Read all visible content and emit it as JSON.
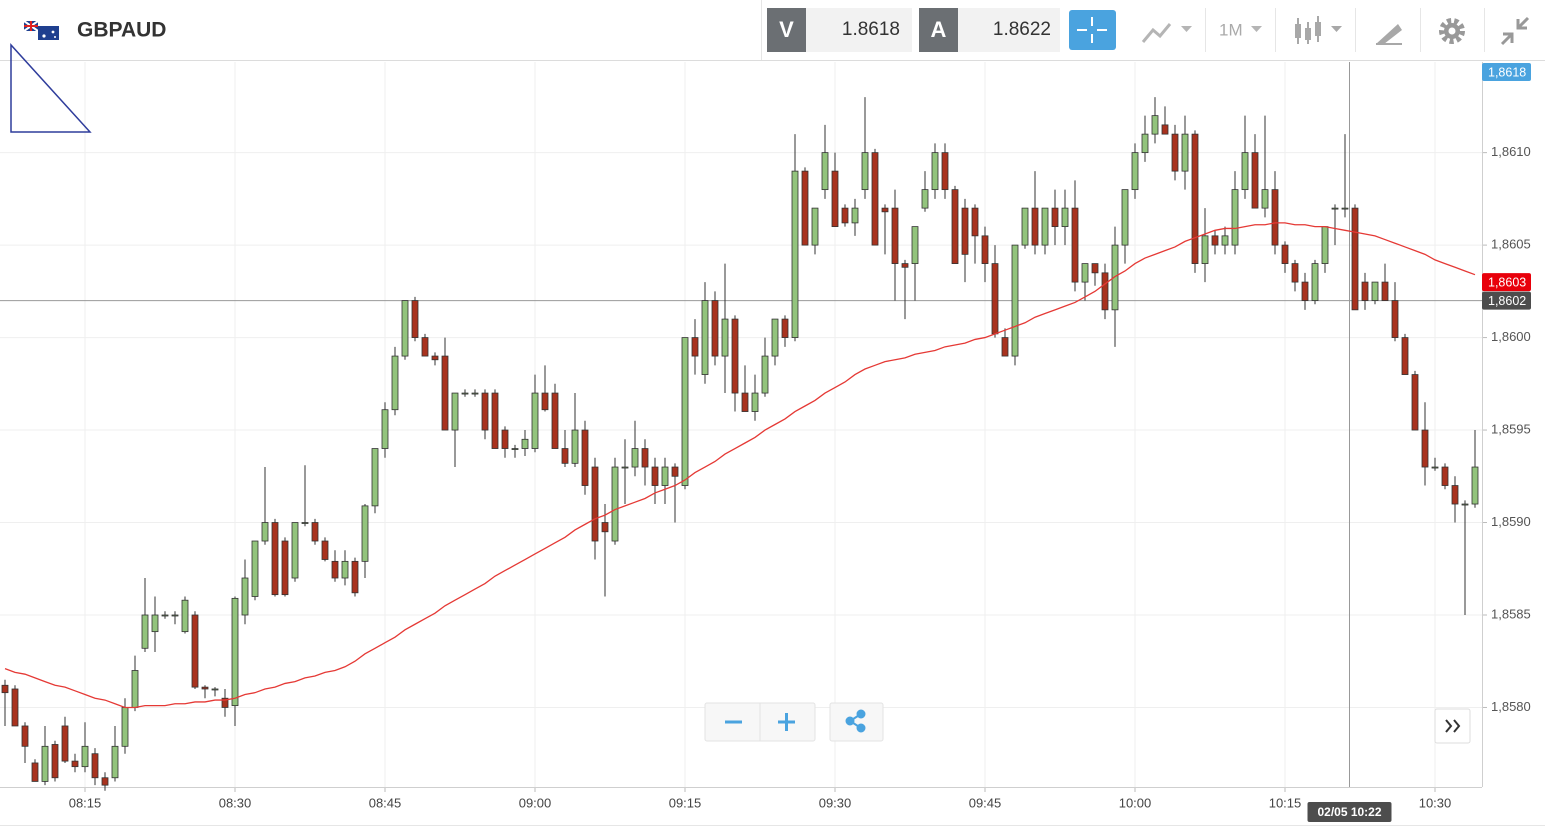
{
  "toolbar": {
    "symbol": "GBPAUD",
    "bid_label": "V",
    "bid": 1.8618,
    "ask_label": "A",
    "ask": 1.8622,
    "timeframe": "1M"
  },
  "chart_data": {
    "type": "candlestick",
    "categories": [
      null,
      null,
      null,
      null,
      null,
      null,
      null,
      null,
      "08:15",
      null,
      null,
      null,
      null,
      null,
      null,
      null,
      null,
      null,
      null,
      null,
      null,
      null,
      null,
      "08:30",
      null,
      null,
      null,
      null,
      null,
      null,
      null,
      null,
      null,
      null,
      null,
      null,
      null,
      null,
      "08:45",
      null,
      null,
      null,
      null,
      null,
      null,
      null,
      null,
      null,
      null,
      null,
      null,
      null,
      null,
      "09:00",
      null,
      null,
      null,
      null,
      null,
      null,
      null,
      null,
      null,
      null,
      null,
      null,
      null,
      null,
      "09:15",
      null,
      null,
      null,
      null,
      null,
      null,
      null,
      null,
      null,
      null,
      null,
      null,
      null,
      null,
      "09:30",
      null,
      null,
      null,
      null,
      null,
      null,
      null,
      null,
      null,
      null,
      null,
      null,
      null,
      null,
      "09:45",
      null,
      null,
      null,
      null,
      null,
      null,
      null,
      null,
      null,
      null,
      null,
      null,
      null,
      null,
      "10:00",
      null,
      null,
      null,
      null,
      null,
      null,
      null,
      null,
      null,
      null,
      null,
      null,
      null,
      null,
      "10:15",
      null,
      null,
      null,
      null,
      null,
      null,
      null,
      null,
      null,
      null,
      null,
      null,
      null,
      null,
      "10:30",
      null,
      null,
      null,
      null
    ],
    "open": [
      1.85812,
      1.8581,
      1.8579,
      1.8577,
      1.8576,
      1.8578,
      1.8579,
      1.85771,
      1.85768,
      1.85775,
      1.85762,
      1.85762,
      1.85779,
      1.858,
      1.85832,
      1.85841,
      1.8585,
      1.8585,
      1.85841,
      1.8585,
      1.85811,
      1.8581,
      1.85805,
      1.85801,
      1.8585,
      1.8586,
      1.8589,
      1.859,
      1.8589,
      1.8587,
      1.859,
      1.859,
      1.8589,
      1.85879,
      1.8587,
      1.85879,
      1.85879,
      1.85909,
      1.8594,
      1.85961,
      1.8599,
      1.8602,
      1.86,
      1.8599,
      1.8599,
      1.8595,
      1.8597,
      1.8597,
      1.8597,
      1.8597,
      1.8595,
      1.8594,
      1.8594,
      1.8594,
      1.8597,
      1.8597,
      1.8594,
      1.85932,
      1.8595,
      1.8593,
      1.859,
      1.8589,
      1.8593,
      1.8593,
      1.8594,
      1.8593,
      1.8592,
      1.8593,
      1.8592,
      1.86,
      1.8598,
      1.8602,
      1.8599,
      1.8601,
      1.8597,
      1.8596,
      1.8597,
      1.8599,
      1.8601,
      1.86,
      1.8609,
      1.8605,
      1.8608,
      1.8609,
      1.8607,
      1.86062,
      1.8608,
      1.861,
      1.8607,
      1.8607,
      1.8604,
      1.8604,
      1.8607,
      1.8608,
      1.861,
      1.8608,
      1.8607,
      1.8607,
      1.86055,
      1.8604,
      1.86,
      1.8599,
      1.8605,
      1.8607,
      1.8605,
      1.8607,
      1.8606,
      1.8607,
      1.8603,
      1.8604,
      1.86035,
      1.86015,
      1.8605,
      1.8608,
      1.861,
      1.8611,
      1.86115,
      1.8611,
      1.8609,
      1.8611,
      1.8604,
      1.86055,
      1.8605,
      1.8605,
      1.8608,
      1.861,
      1.8607,
      1.8608,
      1.8605,
      1.8604,
      1.8603,
      1.8602,
      1.8604,
      1.8607,
      1.8607,
      1.8607,
      1.8603,
      1.8602,
      1.8603,
      1.8602,
      1.86,
      1.8598,
      1.8595,
      1.8593,
      1.8593,
      1.8592,
      1.8591,
      1.8591
    ],
    "high": [
      1.85815,
      1.85812,
      1.85792,
      1.85772,
      1.8579,
      1.85782,
      1.85795,
      1.85775,
      1.85792,
      1.85778,
      1.85765,
      1.8579,
      1.85805,
      1.85828,
      1.8587,
      1.8586,
      1.85852,
      1.85852,
      1.8586,
      1.85852,
      1.85812,
      1.85811,
      1.8581,
      1.8586,
      1.8588,
      1.8589,
      1.8593,
      1.85902,
      1.85892,
      1.859,
      1.85931,
      1.85902,
      1.85892,
      1.85885,
      1.85885,
      1.85881,
      1.8591,
      1.8594,
      1.85965,
      1.85995,
      1.8602,
      1.86022,
      1.86002,
      1.85992,
      1.86,
      1.8597,
      1.85972,
      1.85972,
      1.85972,
      1.85972,
      1.85952,
      1.85942,
      1.8595,
      1.8598,
      1.85985,
      1.85975,
      1.8595,
      1.8597,
      1.85955,
      1.85935,
      1.8591,
      1.85935,
      1.85945,
      1.85955,
      1.85945,
      1.85935,
      1.85935,
      1.85932,
      1.86,
      1.8601,
      1.8603,
      1.86025,
      1.8604,
      1.86012,
      1.85985,
      1.8598,
      1.86,
      1.8601,
      1.86012,
      1.8611,
      1.86092,
      1.8607,
      1.86115,
      1.861,
      1.86072,
      1.86075,
      1.8613,
      1.86102,
      1.86072,
      1.8608,
      1.86042,
      1.8606,
      1.8609,
      1.86105,
      1.86105,
      1.86082,
      1.86075,
      1.86072,
      1.8606,
      1.8605,
      1.86005,
      1.8605,
      1.8607,
      1.8609,
      1.8607,
      1.8608,
      1.8608,
      1.86085,
      1.8604,
      1.8604,
      1.8604,
      1.8606,
      1.8608,
      1.86105,
      1.8612,
      1.8613,
      1.86125,
      1.86115,
      1.8612,
      1.86112,
      1.8607,
      1.86058,
      1.8606,
      1.8609,
      1.8612,
      1.8611,
      1.8612,
      1.8609,
      1.86052,
      1.86042,
      1.86035,
      1.86042,
      1.8606,
      1.86072,
      1.8611,
      1.86072,
      1.86035,
      1.8603,
      1.8604,
      1.8603,
      1.86002,
      1.85982,
      1.85965,
      1.85935,
      1.85932,
      1.85925,
      1.85912,
      1.8595
    ],
    "low": [
      1.8579,
      1.8579,
      1.8577,
      1.8576,
      1.85758,
      1.8576,
      1.8577,
      1.85765,
      1.85765,
      1.85758,
      1.85755,
      1.8576,
      1.85775,
      1.85798,
      1.8583,
      1.8583,
      1.85848,
      1.85845,
      1.8584,
      1.8581,
      1.85805,
      1.85806,
      1.85795,
      1.8579,
      1.85845,
      1.85858,
      1.85888,
      1.8586,
      1.8586,
      1.85868,
      1.85898,
      1.85888,
      1.85879,
      1.85868,
      1.85866,
      1.8586,
      1.8587,
      1.85905,
      1.85935,
      1.85958,
      1.85988,
      1.85998,
      1.8599,
      1.85985,
      1.8595,
      1.8593,
      1.85968,
      1.85968,
      1.85945,
      1.8594,
      1.85935,
      1.85935,
      1.85936,
      1.85938,
      1.8596,
      1.8594,
      1.8593,
      1.8593,
      1.85915,
      1.8588,
      1.8586,
      1.85888,
      1.8591,
      1.85925,
      1.8592,
      1.8591,
      1.8591,
      1.859,
      1.85918,
      1.8598,
      1.85975,
      1.85985,
      1.8597,
      1.8596,
      1.8596,
      1.85955,
      1.85968,
      1.85985,
      1.85995,
      1.85998,
      1.8605,
      1.86045,
      1.86075,
      1.8606,
      1.8606,
      1.86055,
      1.86075,
      1.8605,
      1.86045,
      1.8602,
      1.8601,
      1.8602,
      1.86068,
      1.86075,
      1.86075,
      1.8604,
      1.8603,
      1.8604,
      1.8603,
      1.86,
      1.8599,
      1.85985,
      1.86048,
      1.86045,
      1.86045,
      1.8605,
      1.8605,
      1.86025,
      1.8602,
      1.86028,
      1.8601,
      1.85995,
      1.8604,
      1.86075,
      1.86095,
      1.86105,
      1.8611,
      1.86085,
      1.8608,
      1.86035,
      1.8603,
      1.86045,
      1.86045,
      1.86045,
      1.86075,
      1.8607,
      1.86065,
      1.86045,
      1.86035,
      1.86025,
      1.86015,
      1.86018,
      1.86035,
      1.8605,
      1.86065,
      1.86015,
      1.86015,
      1.86018,
      1.8602,
      1.85998,
      1.8598,
      1.8595,
      1.8592,
      1.85928,
      1.85918,
      1.859,
      1.8585,
      1.85908
    ],
    "close": [
      1.85808,
      1.8579,
      1.85779,
      1.8576,
      1.85779,
      1.85762,
      1.85771,
      1.85768,
      1.85779,
      1.85762,
      1.85758,
      1.85779,
      1.858,
      1.8582,
      1.8585,
      1.8585,
      1.8585,
      1.8585,
      1.85858,
      1.85811,
      1.8581,
      1.8581,
      1.858,
      1.85859,
      1.8587,
      1.8589,
      1.859,
      1.85861,
      1.85861,
      1.859,
      1.859,
      1.8589,
      1.8588,
      1.8587,
      1.85879,
      1.85862,
      1.85909,
      1.8594,
      1.85961,
      1.8599,
      1.8602,
      1.86,
      1.8599,
      1.85988,
      1.8595,
      1.8597,
      1.8597,
      1.8597,
      1.8595,
      1.8594,
      1.8594,
      1.8594,
      1.85945,
      1.8597,
      1.85961,
      1.8594,
      1.85932,
      1.8595,
      1.8592,
      1.8589,
      1.85895,
      1.8593,
      1.8593,
      1.8594,
      1.8593,
      1.8592,
      1.8593,
      1.85925,
      1.86,
      1.8599,
      1.8602,
      1.8599,
      1.8601,
      1.8597,
      1.8596,
      1.8597,
      1.8599,
      1.8601,
      1.86,
      1.8609,
      1.8605,
      1.8607,
      1.861,
      1.8606,
      1.86062,
      1.8607,
      1.861,
      1.8605,
      1.86068,
      1.8604,
      1.86038,
      1.8606,
      1.8608,
      1.861,
      1.8608,
      1.8604,
      1.86045,
      1.86055,
      1.8604,
      1.86002,
      1.8599,
      1.8605,
      1.8607,
      1.8605,
      1.8607,
      1.8606,
      1.8607,
      1.8603,
      1.8604,
      1.86035,
      1.86015,
      1.8605,
      1.8608,
      1.861,
      1.8611,
      1.8612,
      1.8611,
      1.8609,
      1.8611,
      1.8604,
      1.86055,
      1.8605,
      1.86055,
      1.8608,
      1.861,
      1.8607,
      1.8608,
      1.8605,
      1.8604,
      1.8603,
      1.8602,
      1.8604,
      1.8606,
      1.8607,
      1.8607,
      1.86015,
      1.8602,
      1.8603,
      1.8602,
      1.86,
      1.8598,
      1.8595,
      1.8593,
      1.8593,
      1.8592,
      1.8591,
      1.8591,
      1.8593
    ],
    "up_color": "#93c47d",
    "down_color": "#a8321e",
    "ma": {
      "color": "#e53935",
      "values": [
        1.85821,
        1.85819,
        1.85818,
        1.85816,
        1.85814,
        1.85812,
        1.85811,
        1.85809,
        1.85807,
        1.85805,
        1.85804,
        1.85802,
        1.858,
        1.858,
        1.85801,
        1.85801,
        1.85801,
        1.85802,
        1.85802,
        1.85803,
        1.85803,
        1.85804,
        1.85804,
        1.85805,
        1.85807,
        1.85808,
        1.8581,
        1.85811,
        1.85813,
        1.85814,
        1.85816,
        1.85817,
        1.85819,
        1.8582,
        1.85822,
        1.85825,
        1.85829,
        1.85832,
        1.85835,
        1.85838,
        1.85842,
        1.85845,
        1.85848,
        1.85851,
        1.85855,
        1.85858,
        1.85861,
        1.85864,
        1.85867,
        1.85871,
        1.85874,
        1.85877,
        1.8588,
        1.85883,
        1.85886,
        1.85889,
        1.85892,
        1.85896,
        1.85899,
        1.85902,
        1.85904,
        1.85907,
        1.85909,
        1.85911,
        1.85913,
        1.85916,
        1.85918,
        1.8592,
        1.85923,
        1.85927,
        1.8593,
        1.85933,
        1.85937,
        1.8594,
        1.85943,
        1.85946,
        1.8595,
        1.85953,
        1.85956,
        1.8596,
        1.85963,
        1.85966,
        1.8597,
        1.85973,
        1.85976,
        1.8598,
        1.85983,
        1.85985,
        1.85987,
        1.85988,
        1.85989,
        1.85991,
        1.85992,
        1.85993,
        1.85995,
        1.85996,
        1.85997,
        1.85999,
        1.86,
        1.86002,
        1.86004,
        1.86006,
        1.86008,
        1.86011,
        1.86013,
        1.86015,
        1.86017,
        1.86019,
        1.86022,
        1.86025,
        1.86029,
        1.86033,
        1.86036,
        1.8604,
        1.86043,
        1.86045,
        1.86047,
        1.86049,
        1.86052,
        1.86054,
        1.86056,
        1.86058,
        1.86059,
        1.86059,
        1.8606,
        1.86061,
        1.86061,
        1.86062,
        1.86062,
        1.86061,
        1.86061,
        1.8606,
        1.8606,
        1.86059,
        1.86058,
        1.86057,
        1.86056,
        1.86055,
        1.86053,
        1.86051,
        1.86049,
        1.86047,
        1.86045,
        1.86042,
        1.8604,
        1.86038,
        1.86036,
        1.86034
      ]
    },
    "ylim": [
      1.85757,
      1.86149
    ],
    "yticks": [
      {
        "value": 1.858,
        "label": "1,8580"
      },
      {
        "value": 1.8585,
        "label": "1,8585"
      },
      {
        "value": 1.859,
        "label": "1,8590"
      },
      {
        "value": 1.8595,
        "label": "1,8595"
      },
      {
        "value": 1.86,
        "label": "1,8600"
      },
      {
        "value": 1.8605,
        "label": "1,8605"
      },
      {
        "value": 1.861,
        "label": "1,8610"
      }
    ],
    "grid": true,
    "price_markers": [
      {
        "value": 1.8618,
        "label": "1,8618",
        "color": "#4aa3df"
      },
      {
        "value": 1.8603,
        "label": "1,8603",
        "color": "#e8000b"
      }
    ],
    "crosshair": {
      "time_label": "02/05 10:22",
      "price": {
        "value": 1.8602,
        "label": "1,8602"
      },
      "color": "#4d4d4d"
    }
  }
}
